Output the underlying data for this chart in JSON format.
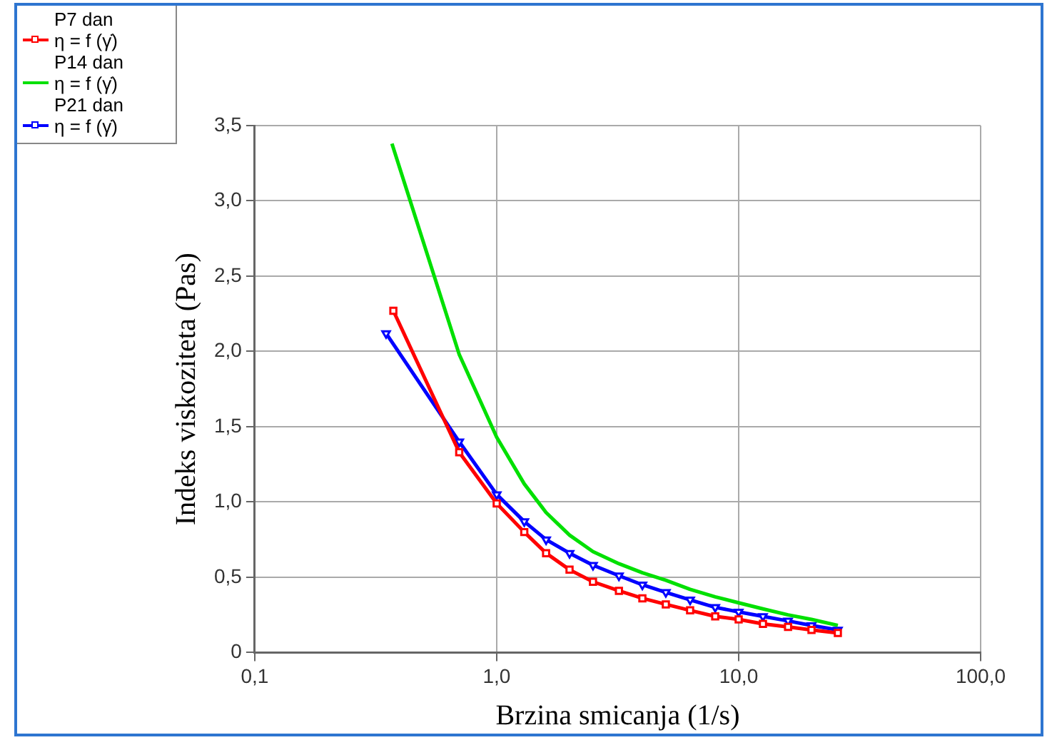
{
  "chart_data": {
    "type": "line",
    "xlabel": "Brzina smicanja (1/s)",
    "ylabel": "Indeks viskoziteta (Pas)",
    "log": "x",
    "grid": true,
    "legend": "top left",
    "line_style": "solid",
    "xlim": [
      0.1,
      100
    ],
    "xticks": [
      {
        "value": 0.1,
        "label": "0,1"
      },
      {
        "value": 1,
        "label": "1,0"
      },
      {
        "value": 10,
        "label": "10,0"
      },
      {
        "value": 100,
        "label": "100,0"
      }
    ],
    "ylim": [
      0,
      3.5
    ],
    "yticks": [
      0,
      {
        "value": 0.5,
        "label": "0,5"
      },
      {
        "value": 1,
        "label": "1,0"
      },
      {
        "value": 1.5,
        "label": "1,5"
      },
      {
        "value": 2,
        "label": "2,0"
      },
      {
        "value": 2.5,
        "label": "2,5"
      },
      {
        "value": 3,
        "label": "3,0"
      },
      {
        "value": 3.5,
        "label": "3,5"
      }
    ],
    "series": [
      {
        "name": "P7 dan\nη = f (γ̇)",
        "color": "#ff0000",
        "marker": "square",
        "x": [
          0.374,
          0.7,
          1.0,
          1.3,
          1.6,
          2.0,
          2.5,
          3.2,
          4,
          5,
          6.3,
          8,
          10,
          12.6,
          16,
          20,
          25.7
        ],
        "values": [
          2.27,
          1.33,
          0.99,
          0.8,
          0.66,
          0.55,
          0.47,
          0.41,
          0.36,
          0.32,
          0.28,
          0.24,
          0.22,
          0.19,
          0.17,
          0.15,
          0.13
        ]
      },
      {
        "name": "P14 dan\nη = f (γ̇)",
        "color": "#00e000",
        "marker": "none",
        "x": [
          0.369,
          0.7,
          1.0,
          1.3,
          1.6,
          2.0,
          2.5,
          3.2,
          4,
          5,
          6.3,
          8,
          10,
          12.6,
          16,
          20,
          25.7
        ],
        "values": [
          3.38,
          1.98,
          1.43,
          1.12,
          0.93,
          0.78,
          0.67,
          0.59,
          0.53,
          0.48,
          0.42,
          0.37,
          0.33,
          0.29,
          0.25,
          0.22,
          0.18
        ]
      },
      {
        "name": "P21 dan\nη = f (γ̇)",
        "color": "#0000ff",
        "marker": "triangle",
        "x": [
          0.349,
          0.7,
          1.0,
          1.3,
          1.6,
          2.0,
          2.5,
          3.2,
          4,
          5,
          6.3,
          8,
          10,
          12.6,
          16,
          20,
          25.7
        ],
        "values": [
          2.12,
          1.4,
          1.05,
          0.87,
          0.75,
          0.66,
          0.58,
          0.51,
          0.45,
          0.4,
          0.35,
          0.3,
          0.27,
          0.24,
          0.21,
          0.18,
          0.15
        ]
      }
    ]
  }
}
